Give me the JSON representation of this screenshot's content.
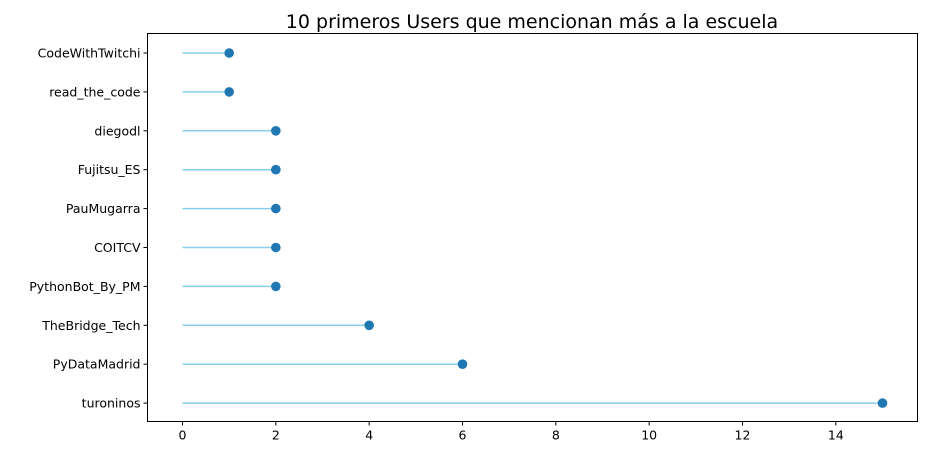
{
  "chart_data": {
    "type": "lollipop",
    "orientation": "horizontal",
    "title": "10 primeros Users que mencionan más a la escuela",
    "xlabel": "",
    "ylabel": "",
    "categories": [
      "turoninos",
      "PyDataMadrid",
      "TheBridge_Tech",
      "PythonBot_By_PM",
      "COITCV",
      "PauMugarra",
      "Fujitsu_ES",
      "diegodl",
      "read_the_code",
      "CodeWithTwitchi"
    ],
    "values": [
      15,
      6,
      4,
      2,
      2,
      2,
      2,
      2,
      1,
      1
    ],
    "xlim": [
      -0.75,
      15.75
    ],
    "xticks": [
      0,
      2,
      4,
      6,
      8,
      10,
      12,
      14
    ],
    "grid": false,
    "colors": {
      "stem": "#87ceeb",
      "marker": "#1f77b4"
    }
  }
}
